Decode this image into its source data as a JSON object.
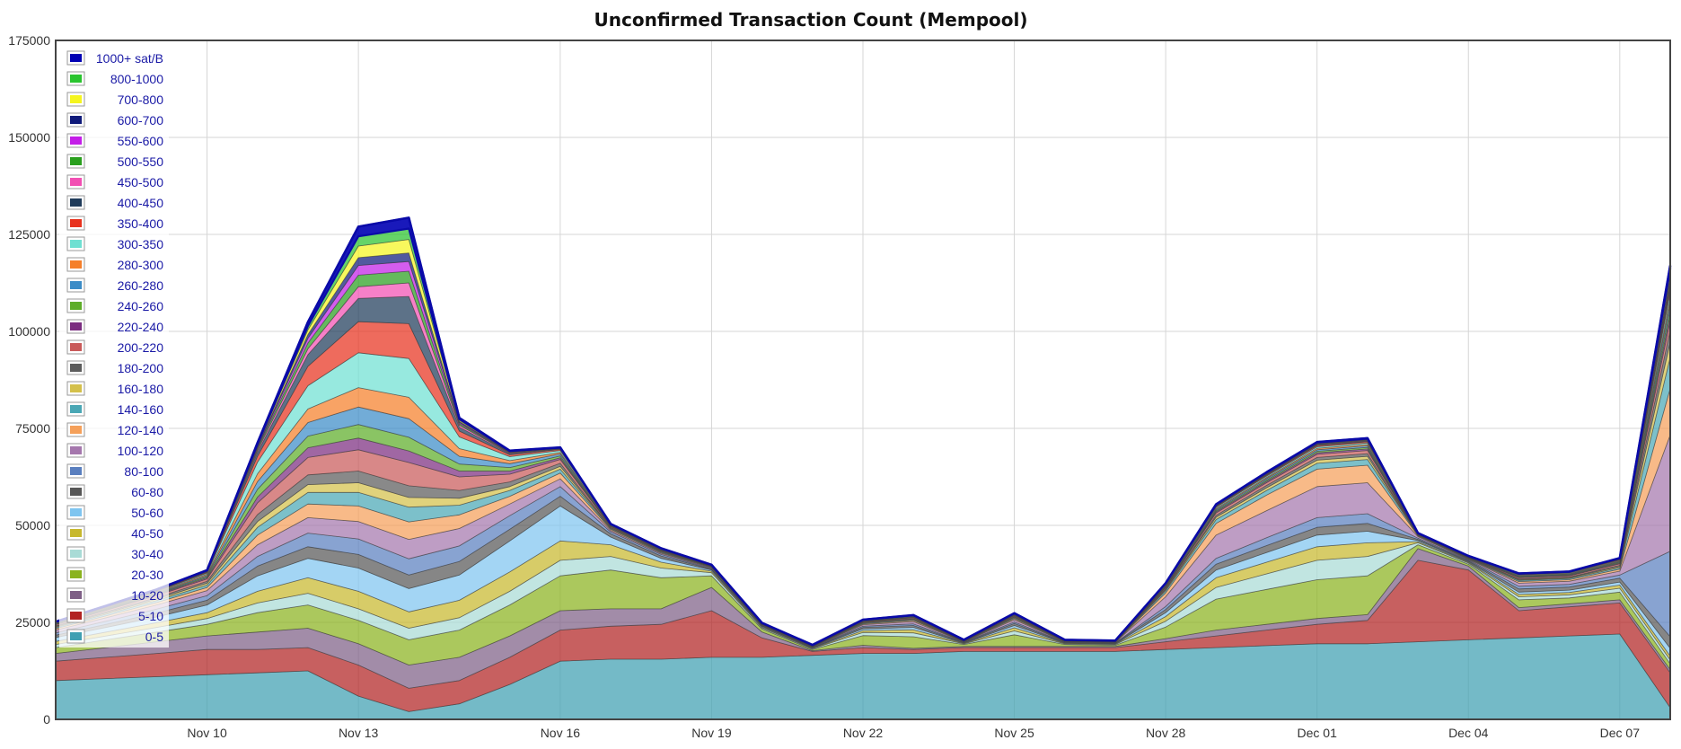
{
  "chart_data": {
    "type": "area",
    "title": "Unconfirmed Transaction Count (Mempool)",
    "xlabel": "",
    "ylabel": "",
    "stacked": true,
    "grid": true,
    "legend_placement": "top-left",
    "ylim": [
      0,
      175000
    ],
    "y_ticks": [
      0,
      25000,
      50000,
      75000,
      100000,
      125000,
      150000,
      175000
    ],
    "y_tick_labels": [
      "0",
      "25000",
      "50000",
      "75000",
      "100000",
      "125000",
      "150000",
      "175000"
    ],
    "x_ticks": [
      "Nov 10",
      "Nov 13",
      "Nov 16",
      "Nov 19",
      "Nov 22",
      "Nov 25",
      "Nov 28",
      "Dec 01",
      "Dec 04",
      "Dec 07"
    ],
    "x": [
      "Nov 07",
      "Nov 08",
      "Nov 09",
      "Nov 10",
      "Nov 11",
      "Nov 12",
      "Nov 13",
      "Nov 13",
      "Nov 14",
      "Nov 15",
      "Nov 16",
      "Nov 17",
      "Nov 18",
      "Nov 19",
      "Nov 20",
      "Nov 21",
      "Nov 22",
      "Nov 23",
      "Nov 24",
      "Nov 25",
      "Nov 26",
      "Nov 27",
      "Nov 28",
      "Nov 29",
      "Nov 30",
      "Dec 01",
      "Dec 02",
      "Dec 03",
      "Dec 04",
      "Dec 05",
      "Dec 06",
      "Dec 07",
      "Dec 08"
    ],
    "series": [
      {
        "name": "0-5",
        "color": "#3f9fb2",
        "values": [
          10000,
          10500,
          11000,
          11500,
          12000,
          12500,
          6000,
          2000,
          4000,
          9000,
          15000,
          15500,
          15500,
          16000,
          16000,
          16500,
          17000,
          17000,
          17500,
          17500,
          17500,
          17500,
          18000,
          18500,
          19000,
          19500,
          19500,
          20000,
          20500,
          21000,
          21500,
          22000,
          3000
        ]
      },
      {
        "name": "5-10",
        "color": "#b22222",
        "values": [
          5000,
          5500,
          6000,
          6500,
          6000,
          6000,
          8000,
          6000,
          6000,
          7000,
          8000,
          8500,
          9000,
          12000,
          5000,
          1000,
          1500,
          1000,
          1000,
          1000,
          1000,
          1000,
          2000,
          3000,
          4000,
          5000,
          6000,
          21000,
          18000,
          7000,
          7500,
          8000,
          9000
        ]
      },
      {
        "name": "10-20",
        "color": "#7e5f86",
        "values": [
          2000,
          2500,
          3000,
          3500,
          4500,
          5000,
          5500,
          6000,
          6000,
          5500,
          5000,
          4500,
          4000,
          6000,
          1500,
          200,
          600,
          300,
          300,
          300,
          300,
          300,
          800,
          1500,
          1500,
          1500,
          1500,
          3000,
          1000,
          800,
          800,
          800,
          800
        ]
      },
      {
        "name": "20-30",
        "color": "#8ab31e",
        "values": [
          1500,
          2000,
          2500,
          3000,
          5000,
          6000,
          6000,
          6500,
          7000,
          8000,
          9000,
          10000,
          8000,
          3000,
          800,
          300,
          2500,
          3000,
          500,
          3000,
          500,
          300,
          3000,
          8000,
          9000,
          10000,
          10000,
          1000,
          500,
          2000,
          1500,
          2000,
          1500
        ]
      },
      {
        "name": "30-40",
        "color": "#a9dbd6",
        "values": [
          800,
          1000,
          1200,
          1500,
          2500,
          3000,
          3000,
          3000,
          3200,
          3500,
          4000,
          3500,
          2500,
          800,
          300,
          200,
          800,
          1000,
          200,
          1000,
          200,
          200,
          1500,
          3000,
          4000,
          5000,
          5000,
          500,
          300,
          800,
          800,
          1000,
          1000
        ]
      },
      {
        "name": "40-50",
        "color": "#c7b82e",
        "values": [
          800,
          1000,
          1200,
          1500,
          3000,
          4000,
          4500,
          4200,
          4500,
          5000,
          5000,
          3000,
          1500,
          400,
          200,
          100,
          500,
          800,
          100,
          800,
          100,
          100,
          1200,
          2500,
          3000,
          3500,
          3500,
          300,
          200,
          600,
          600,
          800,
          1000
        ]
      },
      {
        "name": "50-60",
        "color": "#7fc5f0",
        "values": [
          1000,
          1200,
          1500,
          2000,
          4000,
          5000,
          6000,
          6000,
          6500,
          8000,
          9000,
          2000,
          1000,
          300,
          200,
          100,
          400,
          600,
          100,
          600,
          100,
          100,
          1000,
          2000,
          2500,
          3000,
          3000,
          300,
          200,
          600,
          600,
          800,
          2000
        ]
      },
      {
        "name": "60-80",
        "color": "#575757",
        "values": [
          600,
          800,
          1000,
          1200,
          2500,
          3000,
          3500,
          3500,
          3500,
          3000,
          2500,
          800,
          600,
          200,
          100,
          100,
          400,
          500,
          100,
          500,
          100,
          100,
          800,
          1500,
          1800,
          2000,
          2000,
          300,
          200,
          800,
          800,
          1000,
          3000
        ]
      },
      {
        "name": "80-100",
        "color": "#5a7fbf",
        "values": [
          600,
          800,
          1000,
          1200,
          2500,
          3500,
          4000,
          4200,
          4000,
          3500,
          2500,
          500,
          400,
          200,
          100,
          100,
          300,
          400,
          100,
          400,
          100,
          100,
          800,
          1500,
          2000,
          2500,
          2500,
          300,
          200,
          700,
          700,
          800,
          22000
        ]
      },
      {
        "name": "100-120",
        "color": "#a577ad",
        "values": [
          700,
          900,
          1100,
          1300,
          3000,
          4000,
          4500,
          5000,
          4500,
          3000,
          2000,
          400,
          300,
          200,
          100,
          100,
          400,
          600,
          100,
          600,
          100,
          100,
          2500,
          6000,
          7000,
          8000,
          8000,
          400,
          200,
          800,
          800,
          1000,
          30000
        ]
      },
      {
        "name": "120-140",
        "color": "#f5a05a",
        "values": [
          400,
          500,
          600,
          800,
          2500,
          3500,
          4000,
          4500,
          3500,
          2000,
          1500,
          300,
          200,
          100,
          100,
          50,
          200,
          300,
          50,
          300,
          50,
          50,
          1000,
          3000,
          4000,
          4500,
          4500,
          200,
          100,
          400,
          400,
          500,
          12000
        ]
      },
      {
        "name": "140-160",
        "color": "#4aa7b5",
        "values": [
          300,
          400,
          500,
          600,
          2000,
          3000,
          3500,
          3800,
          2500,
          1500,
          1000,
          200,
          200,
          100,
          50,
          50,
          200,
          200,
          50,
          200,
          50,
          50,
          500,
          1000,
          1200,
          1500,
          1500,
          100,
          100,
          300,
          300,
          400,
          8000
        ]
      },
      {
        "name": "160-180",
        "color": "#d4c04a",
        "values": [
          200,
          300,
          400,
          500,
          1500,
          2000,
          2500,
          2500,
          1800,
          1000,
          700,
          150,
          100,
          50,
          50,
          50,
          100,
          150,
          50,
          150,
          50,
          50,
          300,
          600,
          700,
          800,
          800,
          80,
          80,
          200,
          200,
          300,
          4000
        ]
      },
      {
        "name": "180-200",
        "color": "#5c5c5c",
        "values": [
          200,
          300,
          400,
          500,
          1800,
          2500,
          3000,
          3000,
          2000,
          1200,
          800,
          150,
          100,
          50,
          50,
          50,
          100,
          150,
          50,
          150,
          50,
          50,
          300,
          500,
          600,
          700,
          700,
          80,
          80,
          200,
          200,
          300,
          3000
        ]
      },
      {
        "name": "200-220",
        "color": "#c95a5a",
        "values": [
          300,
          400,
          500,
          600,
          3000,
          4500,
          5500,
          6000,
          3500,
          2000,
          1000,
          200,
          150,
          80,
          50,
          50,
          150,
          200,
          50,
          200,
          50,
          50,
          300,
          600,
          700,
          800,
          800,
          100,
          100,
          300,
          300,
          400,
          2500
        ]
      },
      {
        "name": "220-240",
        "color": "#7b2d80",
        "values": [
          100,
          150,
          200,
          300,
          1500,
          2500,
          3000,
          3000,
          1500,
          800,
          400,
          100,
          80,
          50,
          30,
          30,
          80,
          100,
          30,
          100,
          30,
          30,
          150,
          300,
          350,
          400,
          400,
          50,
          50,
          150,
          150,
          200,
          1500
        ]
      },
      {
        "name": "240-260",
        "color": "#5dad28",
        "values": [
          100,
          150,
          200,
          300,
          2000,
          3000,
          3500,
          3500,
          1800,
          900,
          500,
          100,
          80,
          50,
          30,
          30,
          80,
          100,
          30,
          100,
          30,
          30,
          150,
          300,
          350,
          400,
          400,
          50,
          50,
          150,
          150,
          200,
          1500
        ]
      },
      {
        "name": "260-280",
        "color": "#3b8cc7",
        "values": [
          100,
          150,
          200,
          300,
          2000,
          3500,
          4500,
          4800,
          2000,
          1000,
          500,
          100,
          80,
          50,
          30,
          30,
          80,
          100,
          30,
          100,
          30,
          30,
          150,
          300,
          350,
          400,
          400,
          50,
          50,
          150,
          150,
          200,
          1500
        ]
      },
      {
        "name": "280-300",
        "color": "#f57f2a",
        "values": [
          100,
          150,
          200,
          300,
          2000,
          3500,
          5000,
          5500,
          2000,
          800,
          400,
          80,
          60,
          40,
          30,
          30,
          60,
          80,
          30,
          80,
          30,
          30,
          120,
          250,
          300,
          350,
          350,
          40,
          40,
          120,
          120,
          150,
          1200
        ]
      },
      {
        "name": "300-350",
        "color": "#6fe0d2",
        "values": [
          100,
          150,
          200,
          300,
          3000,
          6000,
          9000,
          10000,
          3000,
          1000,
          500,
          100,
          80,
          50,
          30,
          30,
          80,
          100,
          30,
          100,
          30,
          30,
          150,
          300,
          350,
          400,
          400,
          50,
          50,
          150,
          150,
          200,
          1500
        ]
      },
      {
        "name": "350-400",
        "color": "#e8321e",
        "values": [
          80,
          100,
          150,
          200,
          1500,
          5000,
          8000,
          9000,
          1500,
          500,
          250,
          60,
          50,
          30,
          20,
          20,
          50,
          60,
          20,
          60,
          20,
          20,
          100,
          200,
          250,
          300,
          300,
          30,
          30,
          100,
          100,
          150,
          1000
        ]
      },
      {
        "name": "400-450",
        "color": "#1f3b5a",
        "values": [
          50,
          80,
          100,
          150,
          1000,
          3000,
          6000,
          7000,
          1000,
          300,
          150,
          40,
          30,
          20,
          10,
          10,
          30,
          40,
          10,
          40,
          10,
          10,
          60,
          120,
          150,
          180,
          180,
          20,
          20,
          60,
          60,
          80,
          800
        ]
      },
      {
        "name": "450-500",
        "color": "#f24fb3",
        "values": [
          30,
          50,
          60,
          80,
          500,
          1500,
          3000,
          3500,
          500,
          150,
          80,
          20,
          20,
          10,
          10,
          10,
          20,
          20,
          10,
          20,
          10,
          10,
          40,
          80,
          100,
          120,
          120,
          10,
          10,
          40,
          40,
          50,
          600
        ]
      },
      {
        "name": "500-550",
        "color": "#2aa01e",
        "values": [
          30,
          50,
          60,
          80,
          500,
          1500,
          3000,
          3000,
          400,
          120,
          60,
          20,
          20,
          10,
          10,
          10,
          20,
          20,
          10,
          20,
          10,
          10,
          40,
          80,
          100,
          120,
          120,
          10,
          10,
          40,
          40,
          50,
          600
        ]
      },
      {
        "name": "550-600",
        "color": "#c41ee8",
        "values": [
          20,
          30,
          40,
          50,
          300,
          1200,
          2500,
          2500,
          300,
          100,
          50,
          10,
          10,
          10,
          10,
          10,
          10,
          10,
          10,
          10,
          10,
          10,
          30,
          60,
          80,
          100,
          100,
          10,
          10,
          30,
          30,
          40,
          500
        ]
      },
      {
        "name": "600-700",
        "color": "#0f1a7a",
        "values": [
          20,
          30,
          40,
          50,
          300,
          1000,
          2000,
          2200,
          300,
          100,
          50,
          10,
          10,
          10,
          10,
          10,
          10,
          10,
          10,
          10,
          10,
          10,
          30,
          60,
          80,
          100,
          100,
          10,
          10,
          30,
          30,
          40,
          500
        ]
      },
      {
        "name": "700-800",
        "color": "#f5f51e",
        "values": [
          20,
          30,
          40,
          50,
          300,
          1200,
          3000,
          3500,
          300,
          100,
          50,
          10,
          10,
          10,
          10,
          10,
          10,
          10,
          10,
          10,
          10,
          10,
          30,
          60,
          80,
          100,
          100,
          10,
          10,
          30,
          30,
          40,
          1000
        ]
      },
      {
        "name": "800-1000",
        "color": "#29c42e",
        "values": [
          20,
          30,
          40,
          50,
          300,
          1000,
          2500,
          2800,
          300,
          100,
          50,
          10,
          10,
          10,
          10,
          10,
          10,
          10,
          10,
          10,
          10,
          10,
          30,
          60,
          80,
          100,
          100,
          10,
          10,
          30,
          30,
          40,
          1000
        ]
      },
      {
        "name": "1000+ sat/B",
        "color": "#0000b4",
        "values": [
          20,
          30,
          40,
          50,
          300,
          1000,
          2500,
          2800,
          300,
          100,
          50,
          10,
          10,
          10,
          10,
          10,
          10,
          10,
          10,
          10,
          10,
          10,
          30,
          60,
          80,
          100,
          100,
          10,
          10,
          30,
          30,
          40,
          1000
        ]
      }
    ]
  }
}
